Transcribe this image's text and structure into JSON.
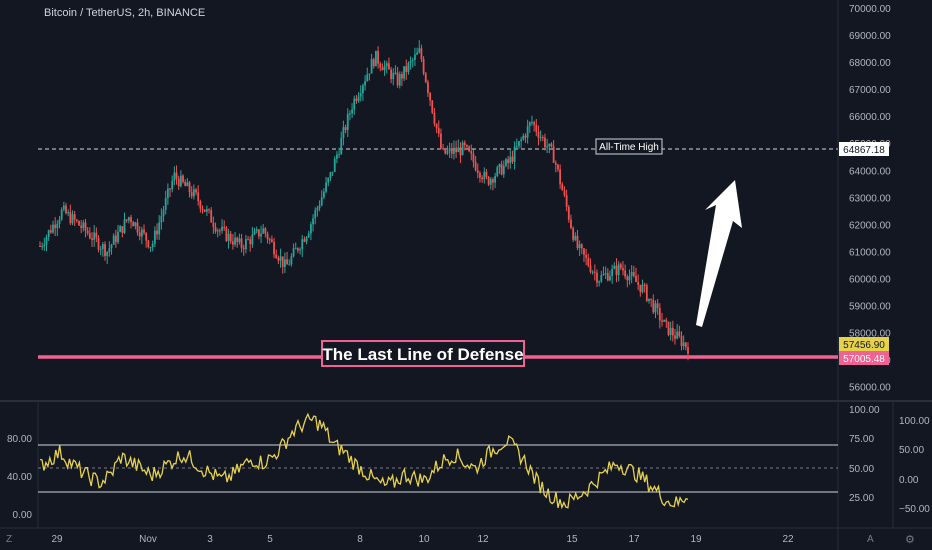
{
  "header": {
    "ticker": "Bitcoin / TetherUS, 2h, BINANCE"
  },
  "colors": {
    "bg": "#131722",
    "up": "#26a69a",
    "down": "#ef5350",
    "defense": "#f06292",
    "rsi": "#e6d24a",
    "ath_line": "#d1d4dc",
    "text": "#b2b5be"
  },
  "price_axis": {
    "ticks": [
      "70000.00",
      "69000.00",
      "68000.00",
      "67000.00",
      "66000.00",
      "65000.00",
      "64000.00",
      "63000.00",
      "62000.00",
      "61000.00",
      "60000.00",
      "59000.00",
      "58000.00",
      "57000.00",
      "56000.00"
    ],
    "tag_last": "57456.90",
    "tag_ath": "64867.18",
    "tag_defense": "57005.48"
  },
  "annotations": {
    "ath_label": "All-Time High",
    "defense_label": "The Last Line of Defense"
  },
  "rsi_pane": {
    "left_ticks": [
      "80.00",
      "40.00",
      "0.00"
    ],
    "right_ticks_a": [
      "100.00",
      "75.00",
      "50.00",
      "25.00"
    ],
    "right_ticks_b": [
      "100.00",
      "50.00",
      "0.00",
      "−50.00"
    ],
    "levels": [
      70,
      50,
      30
    ]
  },
  "time_axis": {
    "labels": [
      "29",
      "Nov",
      "3",
      "5",
      "8",
      "10",
      "12",
      "15",
      "17",
      "19",
      "22"
    ],
    "bottom_left": "Z",
    "bottom_right_a": "A",
    "bottom_right_b": "⚙"
  },
  "chart_data": {
    "type": "candlestick",
    "title": "Bitcoin / TetherUS, 2h, BINANCE",
    "interval": "2h",
    "x_range": [
      "Oct 28",
      "Nov 22"
    ],
    "ylim": [
      55500,
      70300
    ],
    "key_levels": {
      "all_time_high": 64867.18,
      "last_line_of_defense": 57005.48,
      "last_price": 57456.9
    },
    "close_path": [
      {
        "x": "29",
        "y": 61200
      },
      {
        "x": "29",
        "y": 62500
      },
      {
        "x": "29",
        "y": 61800
      },
      {
        "x": "Nov",
        "y": 61000
      },
      {
        "x": "Nov",
        "y": 62300
      },
      {
        "x": "Nov",
        "y": 61200
      },
      {
        "x": "3",
        "y": 63800
      },
      {
        "x": "3",
        "y": 63000
      },
      {
        "x": "3",
        "y": 61800
      },
      {
        "x": "5",
        "y": 61200
      },
      {
        "x": "5",
        "y": 61800
      },
      {
        "x": "5",
        "y": 60400
      },
      {
        "x": "5",
        "y": 61800
      },
      {
        "x": "8",
        "y": 63800
      },
      {
        "x": "8",
        "y": 66500
      },
      {
        "x": "8",
        "y": 68200
      },
      {
        "x": "10",
        "y": 67300
      },
      {
        "x": "10",
        "y": 68400
      },
      {
        "x": "10",
        "y": 64600
      },
      {
        "x": "12",
        "y": 64800
      },
      {
        "x": "12",
        "y": 63600
      },
      {
        "x": "12",
        "y": 64300
      },
      {
        "x": "15",
        "y": 65800
      },
      {
        "x": "15",
        "y": 64500
      },
      {
        "x": "15",
        "y": 61200
      },
      {
        "x": "15",
        "y": 60000
      },
      {
        "x": "17",
        "y": 60400
      },
      {
        "x": "17",
        "y": 59600
      },
      {
        "x": "17",
        "y": 58200
      },
      {
        "x": "19",
        "y": 57456.9
      }
    ],
    "rsi": {
      "levels": [
        70,
        50,
        30
      ],
      "range": [
        0,
        100
      ],
      "shape": [
        52,
        58,
        64,
        55,
        48,
        42,
        38,
        45,
        60,
        55,
        50,
        44,
        50,
        56,
        62,
        58,
        50,
        45,
        40,
        44,
        52,
        58,
        55,
        60,
        70,
        82,
        88,
        92,
        85,
        70,
        65,
        55,
        48,
        40,
        35,
        38,
        45,
        42,
        40,
        50,
        58,
        62,
        55,
        50,
        60,
        68,
        74,
        66,
        55,
        40,
        30,
        24,
        20,
        26,
        32,
        40,
        48,
        55,
        50,
        45,
        38,
        30,
        22,
        20,
        28
      ]
    }
  }
}
